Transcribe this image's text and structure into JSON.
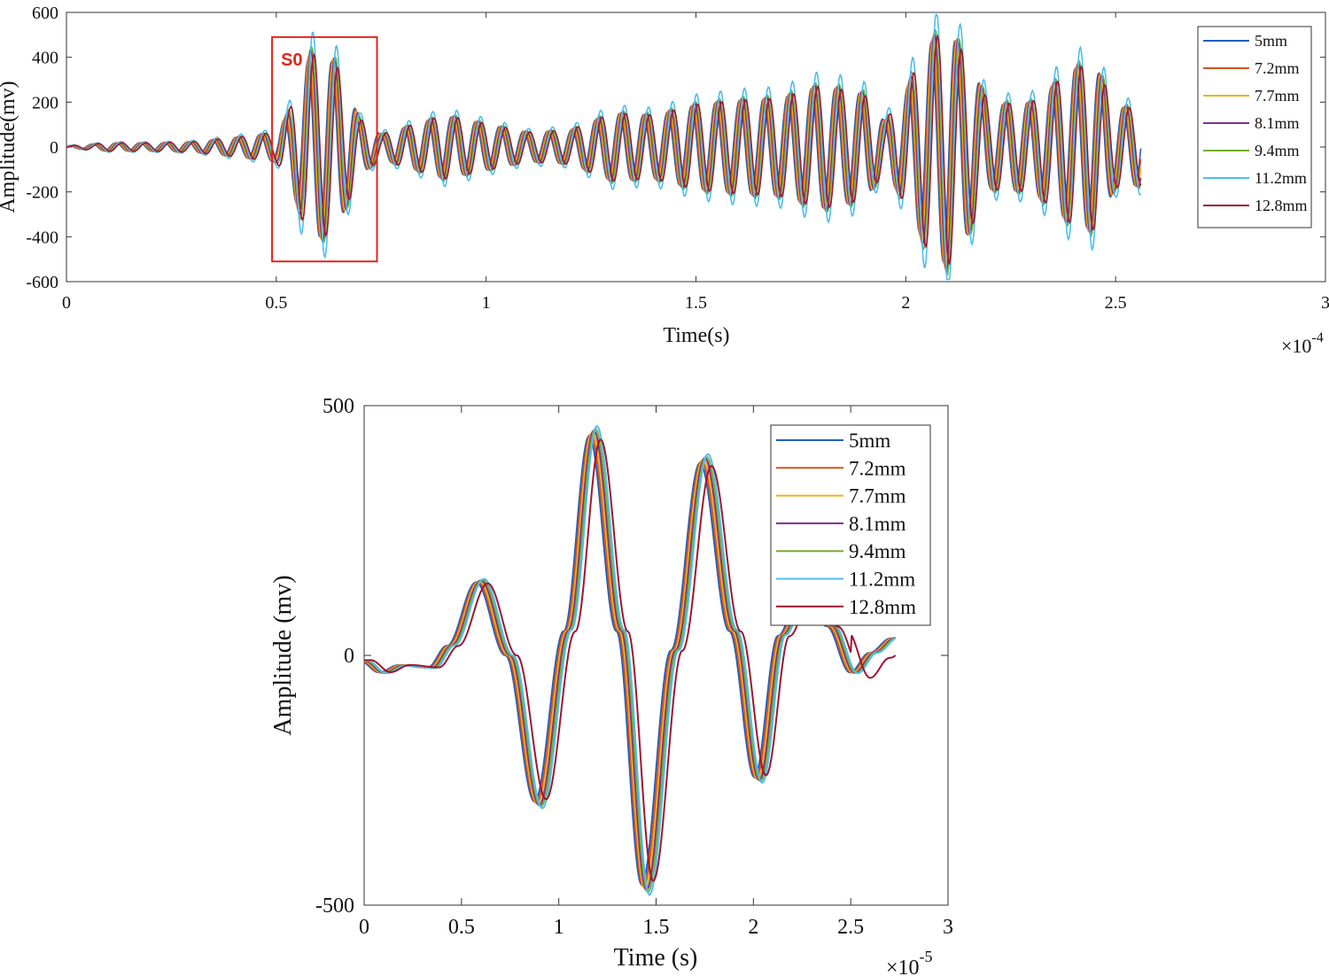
{
  "chart_data": [
    {
      "type": "line",
      "xlabel": "Time(s)",
      "ylabel": "Amplitude(mv)",
      "x_multiplier": "×10",
      "x_exponent": "-4",
      "xlim": [
        0,
        3
      ],
      "ylim": [
        -600,
        600
      ],
      "xticks": [
        "0",
        "0.5",
        "1",
        "1.5",
        "2",
        "2.5",
        "3"
      ],
      "yticks": [
        "600",
        "400",
        "200",
        "0",
        "-200",
        "-400",
        "-600"
      ],
      "legend_position": "top-right",
      "annotation": {
        "label": "S0",
        "x_range": [
          0.49,
          0.74
        ],
        "y_range": [
          -510,
          490
        ],
        "color": "#e0261b"
      },
      "series": [
        {
          "name": "5mm",
          "color": "#1f5fbf"
        },
        {
          "name": "7.2mm",
          "color": "#d9541a"
        },
        {
          "name": "7.7mm",
          "color": "#eeb120"
        },
        {
          "name": "8.1mm",
          "color": "#7e2f8e"
        },
        {
          "name": "9.4mm",
          "color": "#77ac30"
        },
        {
          "name": "11.2mm",
          "color": "#4dbeee"
        },
        {
          "name": "12.8mm",
          "color": "#a2142f"
        }
      ],
      "envelope": {
        "x": [
          0,
          0.1,
          0.2,
          0.3,
          0.4,
          0.5,
          0.53,
          0.58,
          0.64,
          0.7,
          0.75,
          0.8,
          0.9,
          1.0,
          1.1,
          1.2,
          1.3,
          1.4,
          1.5,
          1.6,
          1.7,
          1.8,
          1.9,
          1.95,
          2.0,
          2.05,
          2.1,
          2.15,
          2.2,
          2.3,
          2.4,
          2.45,
          2.5,
          2.56
        ],
        "amplitude": [
          5,
          20,
          20,
          25,
          45,
          70,
          170,
          440,
          400,
          130,
          60,
          90,
          150,
          110,
          70,
          80,
          160,
          150,
          200,
          220,
          230,
          290,
          250,
          120,
          270,
          480,
          560,
          400,
          200,
          210,
          370,
          390,
          190,
          180
        ]
      }
    },
    {
      "type": "line",
      "xlabel": "Time (s)",
      "ylabel": "Amplitude (mv)",
      "x_multiplier": "×10",
      "x_exponent": "-5",
      "xlim": [
        0,
        3
      ],
      "ylim": [
        -500,
        500
      ],
      "xticks": [
        "0",
        "0.5",
        "1",
        "1.5",
        "2",
        "2.5",
        "3"
      ],
      "yticks": [
        "500",
        "0",
        "-500"
      ],
      "legend_position": "top-right",
      "series": [
        {
          "name": "5mm",
          "color": "#1f5fbf"
        },
        {
          "name": "7.2mm",
          "color": "#d9541a"
        },
        {
          "name": "7.7mm",
          "color": "#eeb120"
        },
        {
          "name": "8.1mm",
          "color": "#7e2f8e"
        },
        {
          "name": "9.4mm",
          "color": "#77ac30"
        },
        {
          "name": "11.2mm",
          "color": "#4dbeee"
        },
        {
          "name": "12.8mm",
          "color": "#a2142f"
        }
      ],
      "keypoints": {
        "x": [
          0,
          0.1,
          0.2,
          0.35,
          0.45,
          0.6,
          0.75,
          0.9,
          1.05,
          1.18,
          1.32,
          1.45,
          1.6,
          1.75,
          1.9,
          2.03,
          2.15,
          2.28,
          2.4,
          2.52,
          2.62,
          2.73
        ],
        "y": [
          -10,
          -35,
          -20,
          -25,
          20,
          150,
          0,
          -300,
          50,
          450,
          50,
          -470,
          10,
          395,
          50,
          -250,
          40,
          150,
          60,
          -35,
          5,
          35
        ]
      }
    }
  ]
}
